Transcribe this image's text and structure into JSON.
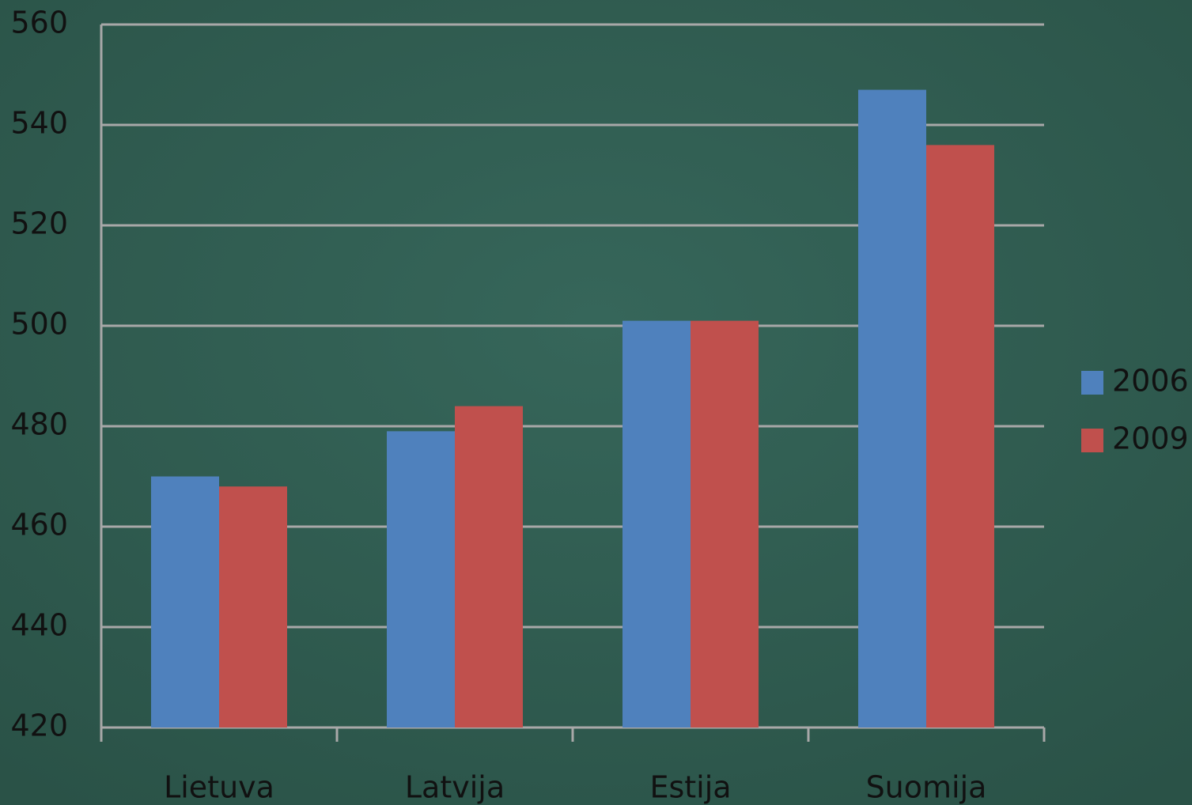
{
  "chart_data": {
    "type": "bar",
    "categories": [
      "Lietuva",
      "Latvija",
      "Estija",
      "Suomija"
    ],
    "series": [
      {
        "name": "2006",
        "color": "#4f81bd",
        "values": [
          470,
          479,
          501,
          547
        ]
      },
      {
        "name": "2009",
        "color": "#c0504d",
        "values": [
          468,
          484,
          501,
          536
        ]
      }
    ],
    "ylim": [
      420,
      560
    ],
    "yticks": [
      420,
      440,
      460,
      480,
      500,
      520,
      540,
      560
    ],
    "grid": true,
    "legend": "right"
  }
}
